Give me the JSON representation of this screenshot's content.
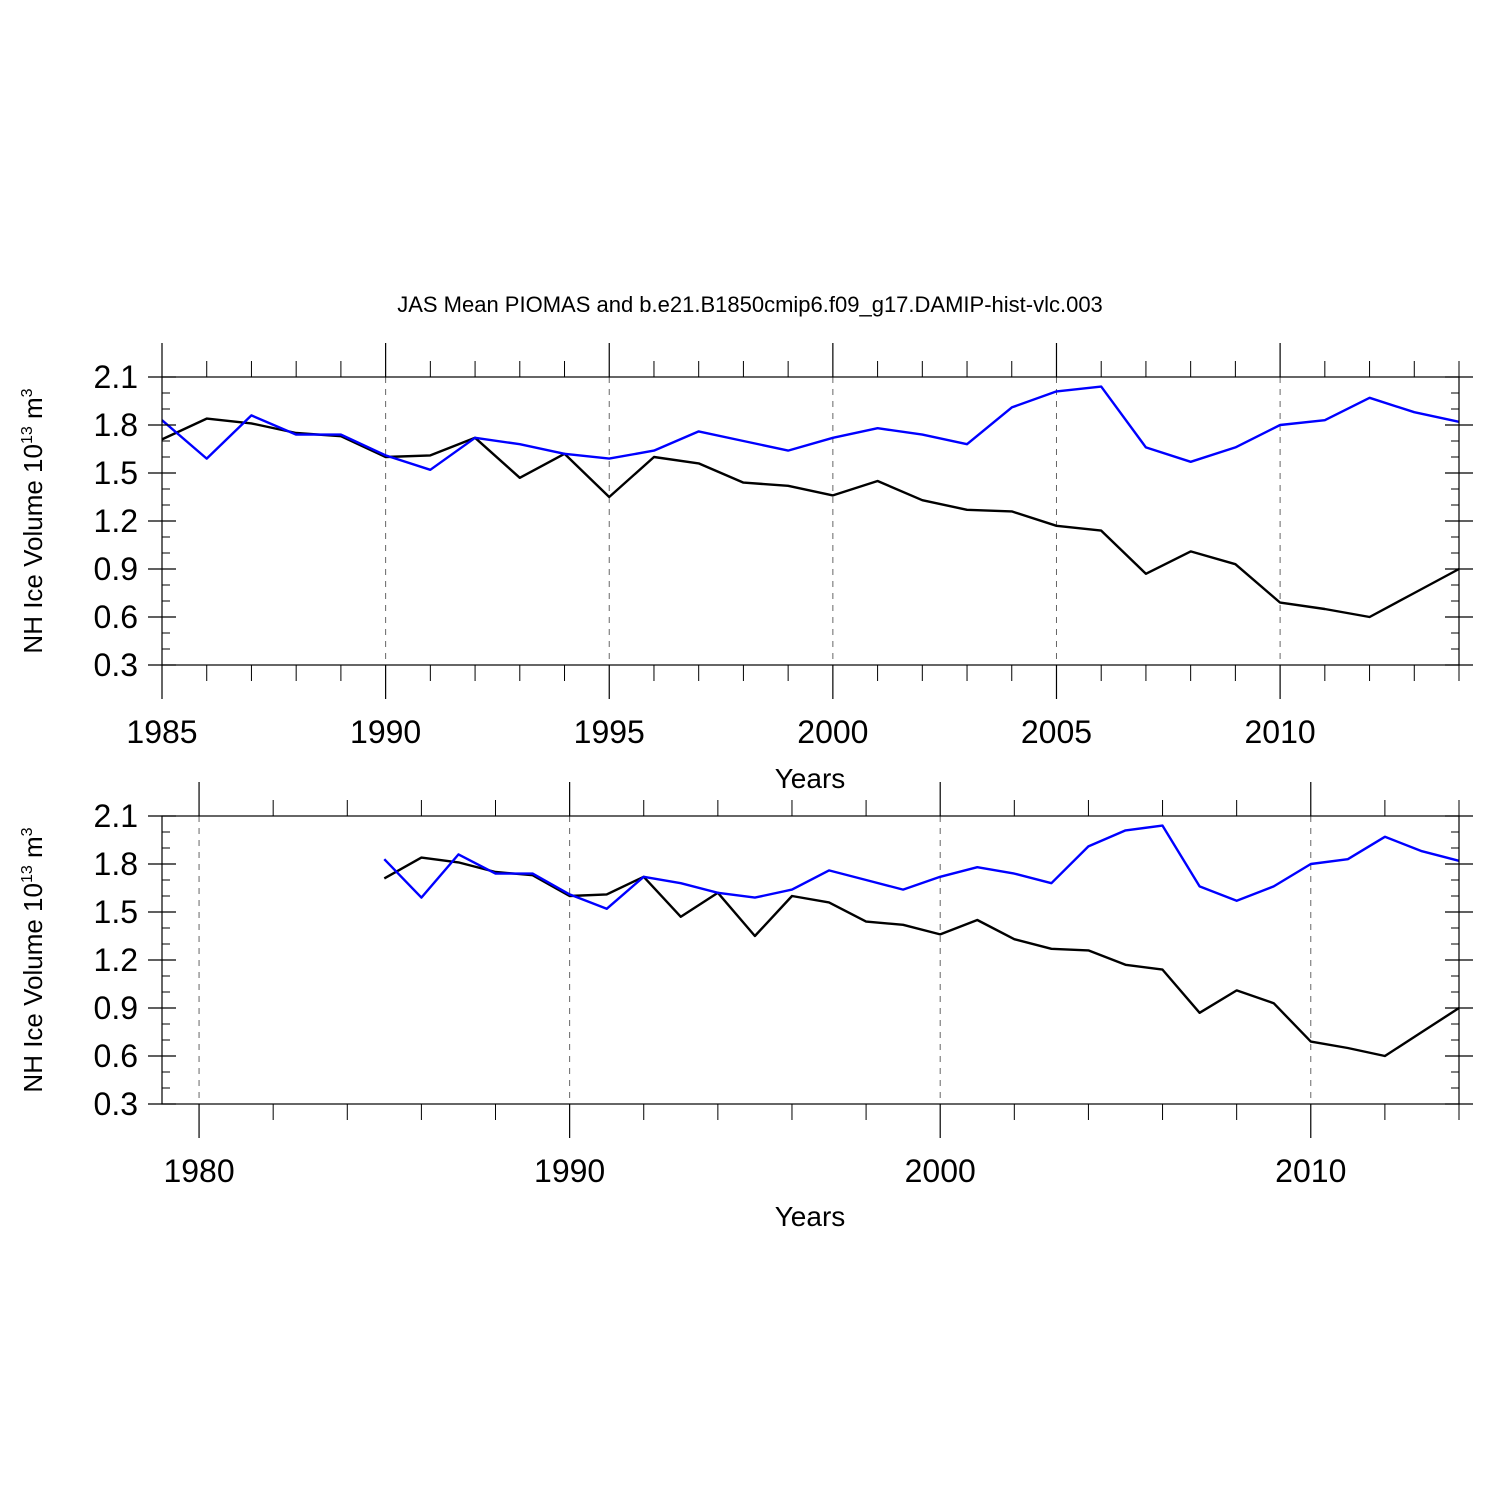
{
  "title": "JAS Mean PIOMAS and b.e21.B1850cmip6.f09_g17.DAMIP-hist-vlc.003",
  "colors": {
    "observed": "#000000",
    "model": "#0000ff",
    "gridline": "#666666"
  },
  "chart_data": [
    {
      "type": "line",
      "xlabel": "Years",
      "ylabel": "NH Ice Volume 10",
      "ylabel_exponent": "13",
      "ylabel_unit_suffix": " m",
      "ylabel_unit_exponent": "3",
      "xlim": [
        1985,
        2014
      ],
      "ylim": [
        0.3,
        2.1
      ],
      "xticks": [
        1985,
        1990,
        1995,
        2000,
        2005,
        2010
      ],
      "xtick_labels": [
        "1985",
        "1990",
        "1995",
        "2000",
        "2005",
        "2010"
      ],
      "yticks": [
        0.3,
        0.6,
        0.9,
        1.2,
        1.5,
        1.8,
        2.1
      ],
      "ytick_labels": [
        "0.3",
        "0.6",
        "0.9",
        "1.2",
        "1.5",
        "1.8",
        "2.1"
      ],
      "x_minor_step": 1,
      "y_minor_step": 0.1,
      "grid": "vertical-dashed",
      "x": [
        1985,
        1986,
        1987,
        1988,
        1989,
        1990,
        1991,
        1992,
        1993,
        1994,
        1995,
        1996,
        1997,
        1998,
        1999,
        2000,
        2001,
        2002,
        2003,
        2004,
        2005,
        2006,
        2007,
        2008,
        2009,
        2010,
        2011,
        2012,
        2013,
        2014
      ],
      "series": [
        {
          "name": "PIOMAS",
          "color": "#000000",
          "values": [
            1.71,
            1.84,
            1.81,
            1.75,
            1.73,
            1.6,
            1.61,
            1.72,
            1.47,
            1.62,
            1.35,
            1.6,
            1.56,
            1.44,
            1.42,
            1.36,
            1.45,
            1.33,
            1.27,
            1.26,
            1.17,
            1.14,
            0.87,
            1.01,
            0.93,
            0.69,
            0.65,
            0.6,
            0.75,
            0.9
          ]
        },
        {
          "name": "DAMIP-hist-vlc.003",
          "color": "#0000ff",
          "values": [
            1.83,
            1.59,
            1.86,
            1.74,
            1.74,
            1.61,
            1.52,
            1.72,
            1.68,
            1.62,
            1.59,
            1.64,
            1.76,
            1.7,
            1.64,
            1.72,
            1.78,
            1.74,
            1.68,
            1.91,
            2.01,
            2.04,
            1.66,
            1.57,
            1.66,
            1.8,
            1.83,
            1.97,
            1.88,
            1.82
          ]
        }
      ]
    },
    {
      "type": "line",
      "xlabel": "Years",
      "ylabel": "NH Ice Volume 10",
      "ylabel_exponent": "13",
      "ylabel_unit_suffix": " m",
      "ylabel_unit_exponent": "3",
      "xlim": [
        1979,
        2014
      ],
      "ylim": [
        0.3,
        2.1
      ],
      "xticks": [
        1980,
        1990,
        2000,
        2010
      ],
      "xtick_labels": [
        "1980",
        "1990",
        "2000",
        "2010"
      ],
      "yticks": [
        0.3,
        0.6,
        0.9,
        1.2,
        1.5,
        1.8,
        2.1
      ],
      "ytick_labels": [
        "0.3",
        "0.6",
        "0.9",
        "1.2",
        "1.5",
        "1.8",
        "2.1"
      ],
      "x_minor_step": 2,
      "y_minor_step": 0.1,
      "grid": "vertical-dashed",
      "x": [
        1985,
        1986,
        1987,
        1988,
        1989,
        1990,
        1991,
        1992,
        1993,
        1994,
        1995,
        1996,
        1997,
        1998,
        1999,
        2000,
        2001,
        2002,
        2003,
        2004,
        2005,
        2006,
        2007,
        2008,
        2009,
        2010,
        2011,
        2012,
        2013,
        2014
      ],
      "series": [
        {
          "name": "PIOMAS",
          "color": "#000000",
          "values": [
            1.71,
            1.84,
            1.81,
            1.75,
            1.73,
            1.6,
            1.61,
            1.72,
            1.47,
            1.62,
            1.35,
            1.6,
            1.56,
            1.44,
            1.42,
            1.36,
            1.45,
            1.33,
            1.27,
            1.26,
            1.17,
            1.14,
            0.87,
            1.01,
            0.93,
            0.69,
            0.65,
            0.6,
            0.75,
            0.9
          ]
        },
        {
          "name": "DAMIP-hist-vlc.003",
          "color": "#0000ff",
          "values": [
            1.83,
            1.59,
            1.86,
            1.74,
            1.74,
            1.61,
            1.52,
            1.72,
            1.68,
            1.62,
            1.59,
            1.64,
            1.76,
            1.7,
            1.64,
            1.72,
            1.78,
            1.74,
            1.68,
            1.91,
            2.01,
            2.04,
            1.66,
            1.57,
            1.66,
            1.8,
            1.83,
            1.97,
            1.88,
            1.82
          ]
        }
      ]
    }
  ]
}
